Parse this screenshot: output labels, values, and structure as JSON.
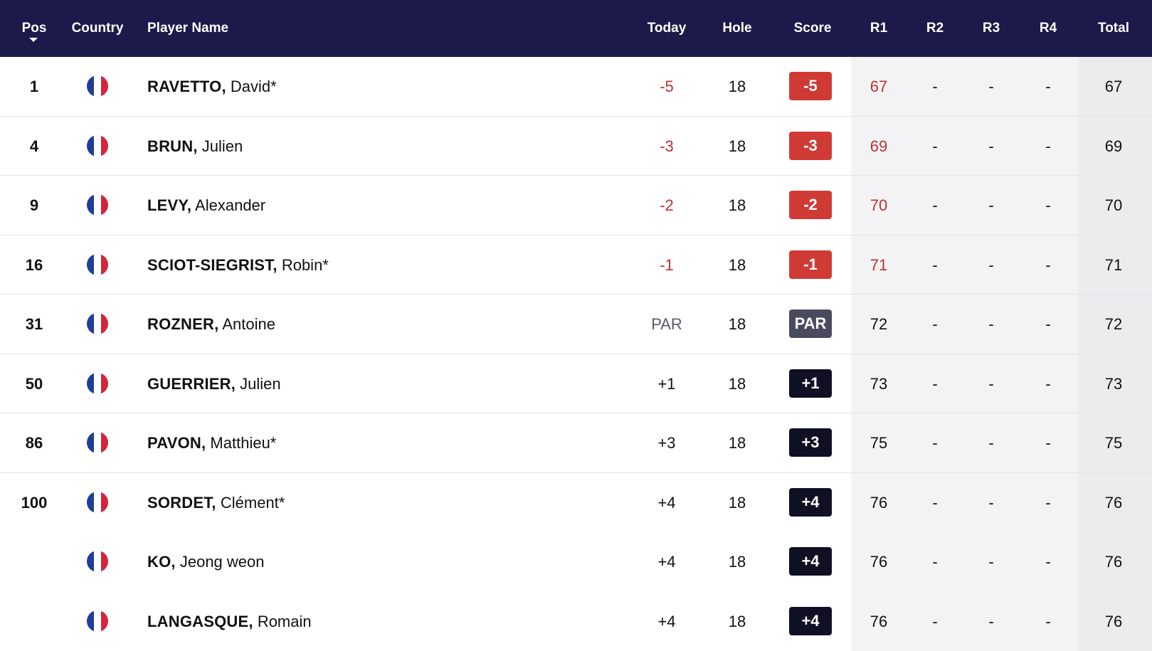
{
  "header": {
    "pos": "Pos",
    "country": "Country",
    "player_name": "Player Name",
    "today": "Today",
    "hole": "Hole",
    "score": "Score",
    "r1": "R1",
    "r2": "R2",
    "r3": "R3",
    "r4": "R4",
    "total": "Total"
  },
  "colors": {
    "header_bg": "#1b1a4a",
    "under_par": "#d03a35",
    "par": "#4a4a5e",
    "over_par": "#0f1024",
    "flag_blue": "#1f3e9a",
    "flag_white": "#ffffff",
    "flag_red": "#d6243a"
  },
  "icons": {
    "sort": "caret-down-icon",
    "flag": "france-flag-icon"
  },
  "rows": [
    {
      "pos": "1",
      "last": "RAVETTO,",
      "first": "David*",
      "today": "-5",
      "hole": "18",
      "score": "-5",
      "r1": "67",
      "r2": "-",
      "r3": "-",
      "r4": "-",
      "total": "67"
    },
    {
      "pos": "4",
      "last": "BRUN,",
      "first": "Julien",
      "today": "-3",
      "hole": "18",
      "score": "-3",
      "r1": "69",
      "r2": "-",
      "r3": "-",
      "r4": "-",
      "total": "69"
    },
    {
      "pos": "9",
      "last": "LEVY,",
      "first": "Alexander",
      "today": "-2",
      "hole": "18",
      "score": "-2",
      "r1": "70",
      "r2": "-",
      "r3": "-",
      "r4": "-",
      "total": "70"
    },
    {
      "pos": "16",
      "last": "SCIOT-SIEGRIST,",
      "first": "Robin*",
      "today": "-1",
      "hole": "18",
      "score": "-1",
      "r1": "71",
      "r2": "-",
      "r3": "-",
      "r4": "-",
      "total": "71"
    },
    {
      "pos": "31",
      "last": "ROZNER,",
      "first": "Antoine",
      "today": "PAR",
      "hole": "18",
      "score": "PAR",
      "r1": "72",
      "r2": "-",
      "r3": "-",
      "r4": "-",
      "total": "72"
    },
    {
      "pos": "50",
      "last": "GUERRIER,",
      "first": "Julien",
      "today": "+1",
      "hole": "18",
      "score": "+1",
      "r1": "73",
      "r2": "-",
      "r3": "-",
      "r4": "-",
      "total": "73"
    },
    {
      "pos": "86",
      "last": "PAVON,",
      "first": "Matthieu*",
      "today": "+3",
      "hole": "18",
      "score": "+3",
      "r1": "75",
      "r2": "-",
      "r3": "-",
      "r4": "-",
      "total": "75"
    },
    {
      "pos": "100",
      "last": "SORDET,",
      "first": "Clément*",
      "today": "+4",
      "hole": "18",
      "score": "+4",
      "r1": "76",
      "r2": "-",
      "r3": "-",
      "r4": "-",
      "total": "76"
    },
    {
      "pos": "",
      "last": "KO,",
      "first": "Jeong weon",
      "today": "+4",
      "hole": "18",
      "score": "+4",
      "r1": "76",
      "r2": "-",
      "r3": "-",
      "r4": "-",
      "total": "76"
    },
    {
      "pos": "",
      "last": "LANGASQUE,",
      "first": "Romain",
      "today": "+4",
      "hole": "18",
      "score": "+4",
      "r1": "76",
      "r2": "-",
      "r3": "-",
      "r4": "-",
      "total": "76"
    }
  ]
}
